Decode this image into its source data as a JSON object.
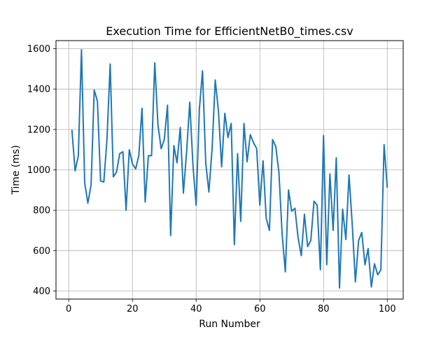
{
  "chart_data": {
    "type": "line",
    "title": "Execution Time for EfficientNetB0_times.csv",
    "xlabel": "Run Number",
    "ylabel": "Time (ms)",
    "xlim": [
      -4,
      105
    ],
    "ylim": [
      360,
      1640
    ],
    "xticks": [
      0,
      20,
      40,
      60,
      80,
      100
    ],
    "yticks": [
      400,
      600,
      800,
      1000,
      1200,
      1400,
      1600
    ],
    "grid": true,
    "series": [
      {
        "color": "#1f77b4",
        "x": [
          1,
          2,
          3,
          4,
          5,
          6,
          7,
          8,
          9,
          10,
          11,
          12,
          13,
          14,
          15,
          16,
          17,
          18,
          19,
          20,
          21,
          22,
          23,
          24,
          25,
          26,
          27,
          28,
          29,
          30,
          31,
          32,
          33,
          34,
          35,
          36,
          37,
          38,
          39,
          40,
          41,
          42,
          43,
          44,
          45,
          46,
          47,
          48,
          49,
          50,
          51,
          52,
          53,
          54,
          55,
          56,
          57,
          58,
          59,
          60,
          61,
          62,
          63,
          64,
          65,
          66,
          67,
          68,
          69,
          70,
          71,
          72,
          73,
          74,
          75,
          76,
          77,
          78,
          79,
          80,
          81,
          82,
          83,
          84,
          85,
          86,
          87,
          88,
          89,
          90,
          91,
          92,
          93,
          94,
          95,
          96,
          97,
          98,
          99,
          100
        ],
        "y": [
          1195,
          995,
          1070,
          1595,
          935,
          835,
          925,
          1395,
          1340,
          945,
          940,
          1150,
          1525,
          965,
          990,
          1080,
          1090,
          800,
          1100,
          1030,
          1005,
          1070,
          1305,
          840,
          1070,
          1070,
          1530,
          1225,
          1105,
          1150,
          1320,
          675,
          1120,
          1035,
          1210,
          885,
          1090,
          1335,
          1020,
          825,
          1300,
          1490,
          1035,
          890,
          1105,
          1445,
          1290,
          1015,
          1280,
          1160,
          1230,
          630,
          1080,
          745,
          1230,
          1040,
          1175,
          1135,
          1105,
          825,
          1045,
          760,
          700,
          1150,
          1115,
          985,
          680,
          495,
          900,
          795,
          810,
          665,
          575,
          780,
          620,
          650,
          845,
          825,
          505,
          1170,
          530,
          980,
          700,
          1060,
          415,
          805,
          655,
          975,
          730,
          445,
          650,
          690,
          530,
          610,
          420,
          535,
          480,
          505,
          1125,
          915
        ]
      }
    ]
  }
}
